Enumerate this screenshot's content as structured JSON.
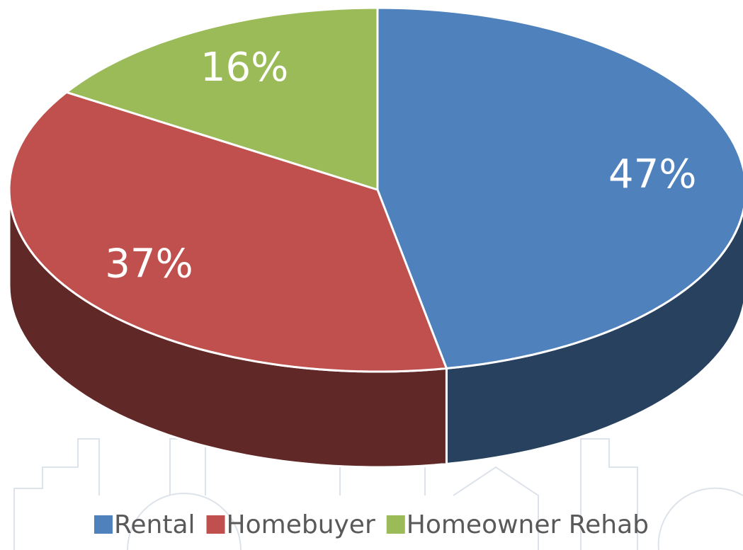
{
  "chart_data": {
    "type": "pie",
    "categories": [
      "Rental",
      "Homebuyer",
      "Homeowner Rehab"
    ],
    "values": [
      47,
      37,
      16
    ],
    "value_labels": [
      "47%",
      "37%",
      "16%"
    ],
    "colors": [
      "#4f81bd",
      "#c0504d",
      "#9bbb59"
    ],
    "legend": "bottom"
  }
}
